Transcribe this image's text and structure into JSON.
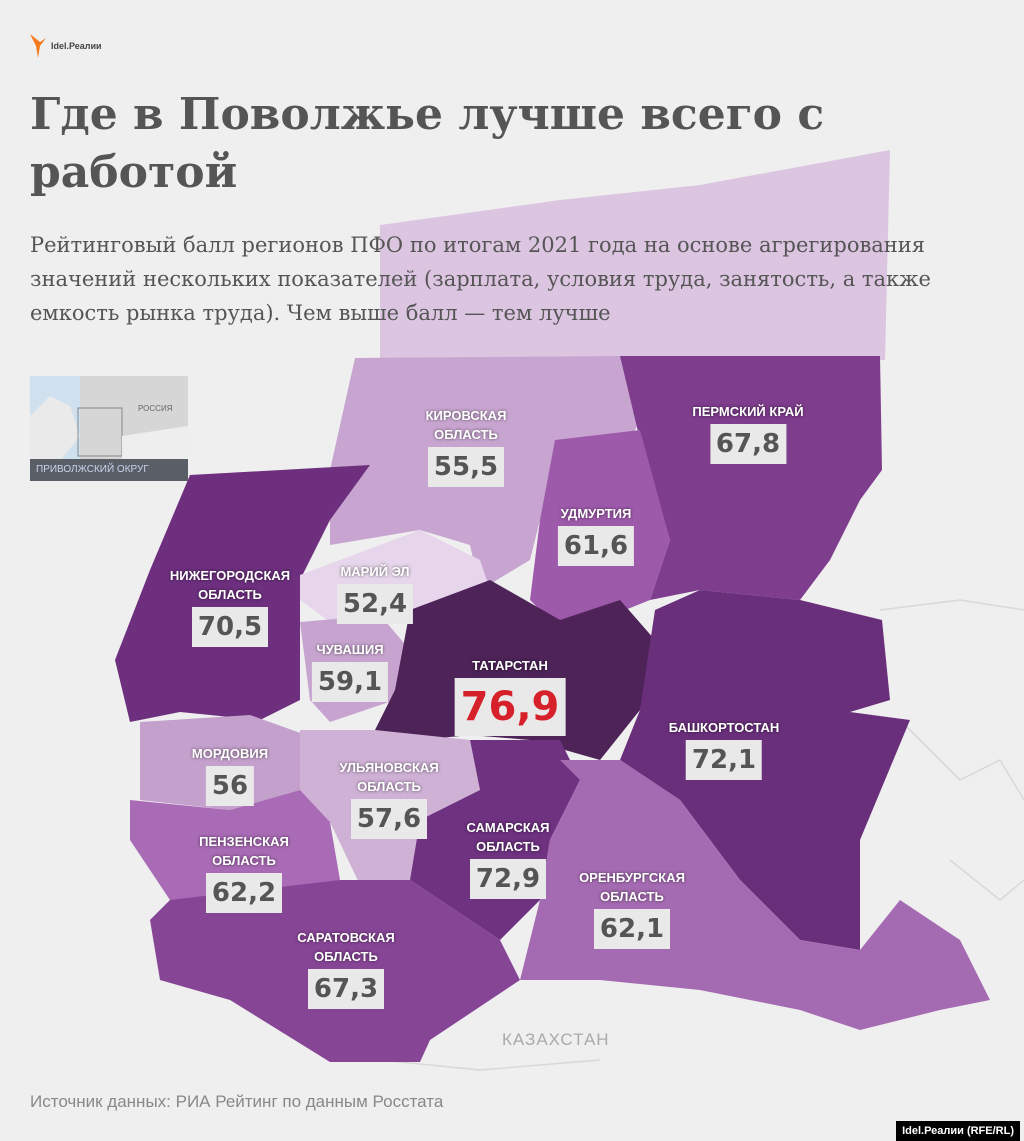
{
  "brand": {
    "logo_text": "Idel.Реалии",
    "accent": "#f47b20"
  },
  "title": "Где в Поволжье лучше всего с работой",
  "subtitle": "Рейтинговый балл регионов ПФО по итогам 2021 года на основе агрегирования значений нескольких показателей (зарплата, условия труда, занятость, а также емкость рынка труда). Чем выше балл — тем лучше",
  "inset": {
    "country_label": "РОССИЯ",
    "district_label": "ПРИВОЛЖСКИЙ ОКРУГ"
  },
  "regions": [
    {
      "name": "КИРОВСКАЯ ОБЛАСТЬ",
      "value": "55,5",
      "color": "#c8a5d0"
    },
    {
      "name": "ПЕРМСКИЙ КРАЙ",
      "value": "67,8",
      "color": "#7e3d8d"
    },
    {
      "name": "УДМУРТИЯ",
      "value": "61,6",
      "color": "#9d5aaa"
    },
    {
      "name": "НИЖЕГОРОДСКАЯ ОБЛАСТЬ",
      "value": "70,5",
      "color": "#6d2f7e"
    },
    {
      "name": "МАРИЙ ЭЛ",
      "value": "52,4",
      "color": "#e7d6eb"
    },
    {
      "name": "ЧУВАШИЯ",
      "value": "59,1",
      "color": "#c7a4cf"
    },
    {
      "name": "ТАТАРСТАН",
      "value": "76,9",
      "color": "#4d2358",
      "highlight": "#d6202a"
    },
    {
      "name": "БАШКОРТОСТАН",
      "value": "72,1",
      "color": "#6a2f7b"
    },
    {
      "name": "МОРДОВИЯ",
      "value": "56",
      "color": "#c4a0cc"
    },
    {
      "name": "УЛЬЯНОВСКАЯ ОБЛАСТЬ",
      "value": "57,6",
      "color": "#cfb1d6"
    },
    {
      "name": "САМАРСКАЯ ОБЛАСТЬ",
      "value": "72,9",
      "color": "#6e3280"
    },
    {
      "name": "ПЕНЗЕНСКАЯ ОБЛАСТЬ",
      "value": "62,2",
      "color": "#a96bb5"
    },
    {
      "name": "САРАТОВСКАЯ ОБЛАСТЬ",
      "value": "67,3",
      "color": "#874596"
    },
    {
      "name": "ОРЕНБУРГСКАЯ ОБЛАСТЬ",
      "value": "62,1",
      "color": "#a56bb2"
    }
  ],
  "neighbor_label": "КАЗАХСТАН",
  "source": "Источник данных: РИА Рейтинг по данным Росстата",
  "credit": "Idel.Реалии (RFE/RL)"
}
